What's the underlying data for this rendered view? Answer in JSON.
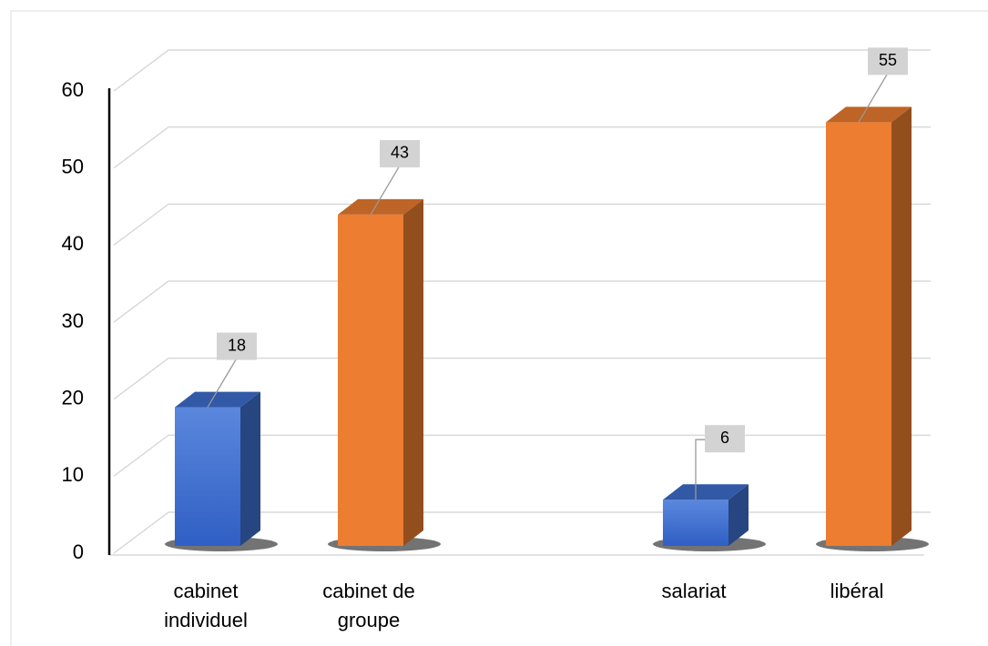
{
  "chart_data": {
    "type": "bar",
    "categories": [
      "cabinet individuel",
      "cabinet de groupe",
      "salariat",
      "libéral"
    ],
    "values": [
      18,
      43,
      6,
      55
    ],
    "colors": [
      "#3f6fd0",
      "#ed7d31",
      "#3f6fd0",
      "#ed7d31"
    ],
    "ylim": [
      0,
      60
    ],
    "yticks": [
      0,
      10,
      20,
      30,
      40,
      50,
      60
    ],
    "grid": true
  }
}
